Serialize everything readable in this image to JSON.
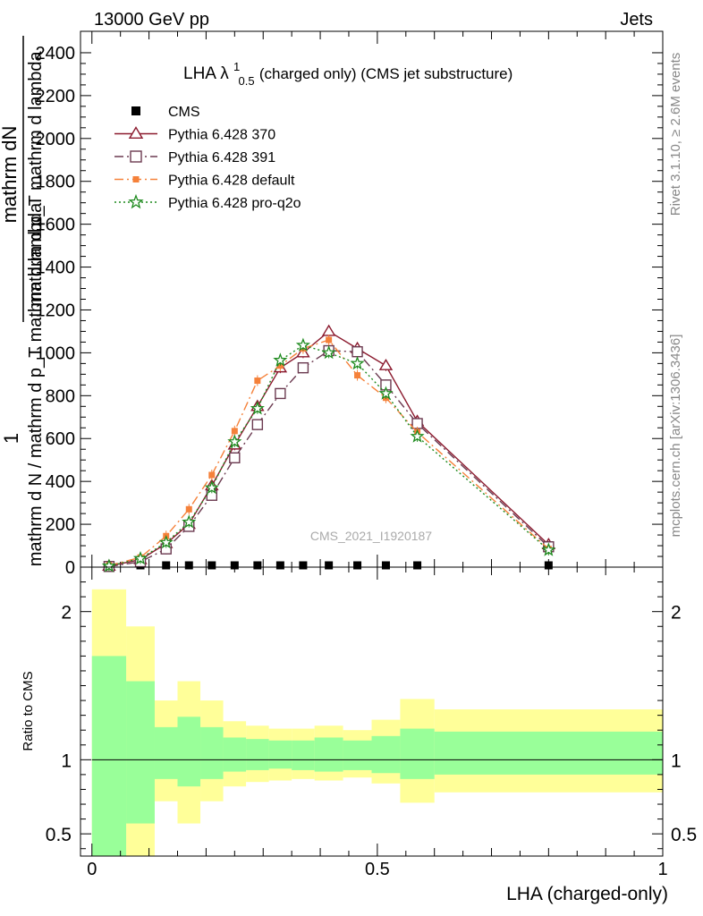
{
  "header": {
    "left": "13000 GeV pp",
    "right": "Jets"
  },
  "side_text": {
    "rivet": "Rivet 3.1.10, ≥ 2.6M events",
    "mcplots": "mcplots.cern.ch [arXiv:1306.3436]"
  },
  "colors": {
    "cms": "#000000",
    "p370": "#8b1a2e",
    "p391": "#6b3a50",
    "pdefault": "#f5813a",
    "pq2o": "#1e8a1e",
    "band_inner": "#99ff99",
    "band_outer": "#ffff99"
  },
  "chart_data": [
    {
      "type": "line",
      "title_main": "LHA λ",
      "title_sup": "1",
      "title_sub": "0.5",
      "title_rest": " (charged only) (CMS jet substructure)",
      "ylabel_top": "mathrm dN",
      "ylabel_bottom": "mathrm d p_T mathrm d lambda",
      "ylabel_den": "mathrm d N / mathrm d p_T mathrm d lambda",
      "ylabel_one": "1",
      "watermark": "CMS_2021_I1920187",
      "xlim": [
        -0.02,
        1.0
      ],
      "ylim": [
        0,
        2500
      ],
      "y_ticks": [
        0,
        200,
        400,
        600,
        800,
        1000,
        1200,
        1400,
        1600,
        1800,
        2000,
        2200,
        2400
      ],
      "legend_position": "top-left",
      "series": [
        {
          "name": "CMS",
          "marker": "square-filled",
          "x": [
            0.03,
            0.085,
            0.13,
            0.17,
            0.21,
            0.25,
            0.29,
            0.33,
            0.37,
            0.415,
            0.465,
            0.515,
            0.57,
            0.8
          ],
          "y": [
            0,
            0,
            0,
            0,
            0,
            0,
            0,
            0,
            0,
            0,
            0,
            0,
            0,
            0
          ]
        },
        {
          "name": "Pythia 6.428 370",
          "marker": "triangle-open",
          "dash": "solid",
          "x": [
            0.03,
            0.085,
            0.13,
            0.17,
            0.21,
            0.25,
            0.29,
            0.33,
            0.37,
            0.415,
            0.465,
            0.515,
            0.57,
            0.8
          ],
          "y": [
            5,
            35,
            110,
            200,
            380,
            570,
            750,
            930,
            1000,
            1100,
            1020,
            940,
            680,
            105
          ]
        },
        {
          "name": "Pythia 6.428 391",
          "marker": "square-open",
          "dash": "dashdot",
          "x": [
            0.03,
            0.085,
            0.13,
            0.17,
            0.21,
            0.25,
            0.29,
            0.33,
            0.37,
            0.415,
            0.465,
            0.515,
            0.57,
            0.8
          ],
          "y": [
            3,
            25,
            85,
            190,
            335,
            510,
            665,
            810,
            930,
            1010,
            1005,
            850,
            670,
            95
          ]
        },
        {
          "name": "Pythia 6.428 default",
          "marker": "square-filled",
          "dash": "dashdot",
          "x": [
            0.03,
            0.085,
            0.13,
            0.17,
            0.21,
            0.25,
            0.29,
            0.33,
            0.37,
            0.415,
            0.465,
            0.515,
            0.57,
            0.8
          ],
          "y": [
            8,
            45,
            145,
            270,
            430,
            635,
            870,
            940,
            1020,
            1060,
            895,
            790,
            630,
            85
          ]
        },
        {
          "name": "Pythia 6.428 pro-q2o",
          "marker": "star-open",
          "dash": "dotted",
          "x": [
            0.03,
            0.085,
            0.13,
            0.17,
            0.21,
            0.25,
            0.29,
            0.33,
            0.37,
            0.415,
            0.465,
            0.515,
            0.57,
            0.8
          ],
          "y": [
            5,
            40,
            115,
            210,
            370,
            585,
            740,
            965,
            1035,
            1000,
            950,
            810,
            610,
            80
          ]
        }
      ]
    },
    {
      "type": "area",
      "ylabel": "Ratio to CMS",
      "xlabel": "LHA (charged-only)",
      "xlim": [
        -0.02,
        1.0
      ],
      "ylim": [
        0.35,
        2.3
      ],
      "y_tick_labels": [
        {
          "value": 0.5,
          "label": "0.5"
        },
        {
          "value": 1,
          "label": "1"
        },
        {
          "value": 2,
          "label": "2"
        }
      ],
      "x_tick_labels": [
        {
          "value": 0,
          "label": "0"
        },
        {
          "value": 0.5,
          "label": "0.5"
        },
        {
          "value": 1,
          "label": "1"
        }
      ],
      "reference_line": 1,
      "bins": [
        {
          "lo": 0.0,
          "hi": 0.06,
          "outer": [
            0.0,
            2.15
          ],
          "inner": [
            0.0,
            1.7
          ]
        },
        {
          "lo": 0.06,
          "hi": 0.11,
          "outer": [
            0.0,
            1.9
          ],
          "inner": [
            0.57,
            1.53
          ]
        },
        {
          "lo": 0.11,
          "hi": 0.15,
          "outer": [
            0.72,
            1.4
          ],
          "inner": [
            0.87,
            1.22
          ]
        },
        {
          "lo": 0.15,
          "hi": 0.19,
          "outer": [
            0.57,
            1.53
          ],
          "inner": [
            0.82,
            1.29
          ]
        },
        {
          "lo": 0.19,
          "hi": 0.23,
          "outer": [
            0.72,
            1.4
          ],
          "inner": [
            0.87,
            1.22
          ]
        },
        {
          "lo": 0.23,
          "hi": 0.27,
          "outer": [
            0.82,
            1.26
          ],
          "inner": [
            0.92,
            1.15
          ]
        },
        {
          "lo": 0.27,
          "hi": 0.31,
          "outer": [
            0.85,
            1.23
          ],
          "inner": [
            0.93,
            1.14
          ]
        },
        {
          "lo": 0.31,
          "hi": 0.35,
          "outer": [
            0.86,
            1.21
          ],
          "inner": [
            0.94,
            1.13
          ]
        },
        {
          "lo": 0.35,
          "hi": 0.39,
          "outer": [
            0.87,
            1.21
          ],
          "inner": [
            0.93,
            1.13
          ]
        },
        {
          "lo": 0.39,
          "hi": 0.44,
          "outer": [
            0.86,
            1.23
          ],
          "inner": [
            0.92,
            1.15
          ]
        },
        {
          "lo": 0.44,
          "hi": 0.49,
          "outer": [
            0.88,
            1.2
          ],
          "inner": [
            0.93,
            1.13
          ]
        },
        {
          "lo": 0.49,
          "hi": 0.54,
          "outer": [
            0.84,
            1.27
          ],
          "inner": [
            0.91,
            1.16
          ]
        },
        {
          "lo": 0.54,
          "hi": 0.6,
          "outer": [
            0.71,
            1.41
          ],
          "inner": [
            0.87,
            1.21
          ]
        },
        {
          "lo": 0.6,
          "hi": 1.0,
          "outer": [
            0.78,
            1.34
          ],
          "inner": [
            0.9,
            1.19
          ]
        }
      ]
    }
  ]
}
